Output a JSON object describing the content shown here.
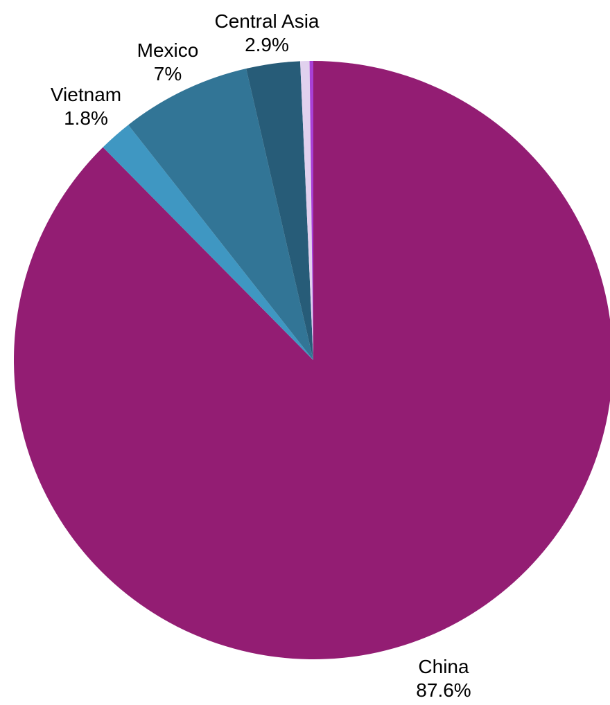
{
  "chart_data": {
    "type": "pie",
    "title": "",
    "slices": [
      {
        "label": "China",
        "value": 87.6,
        "display_value": "87.6%",
        "color": "#931D73",
        "show_label": true
      },
      {
        "label": "Vietnam",
        "value": 1.8,
        "display_value": "1.8%",
        "color": "#3F97C2",
        "show_label": true
      },
      {
        "label": "Mexico",
        "value": 7,
        "display_value": "7%",
        "color": "#327596",
        "show_label": true
      },
      {
        "label": "Central Asia",
        "value": 2.9,
        "display_value": "2.9%",
        "color": "#275C78",
        "show_label": true
      },
      {
        "label": "",
        "value": 0.5,
        "display_value": "",
        "color": "#E1D1EE",
        "show_label": false
      },
      {
        "label": "",
        "value": 0.2,
        "display_value": "",
        "color": "#A83FD6",
        "show_label": false
      }
    ]
  }
}
